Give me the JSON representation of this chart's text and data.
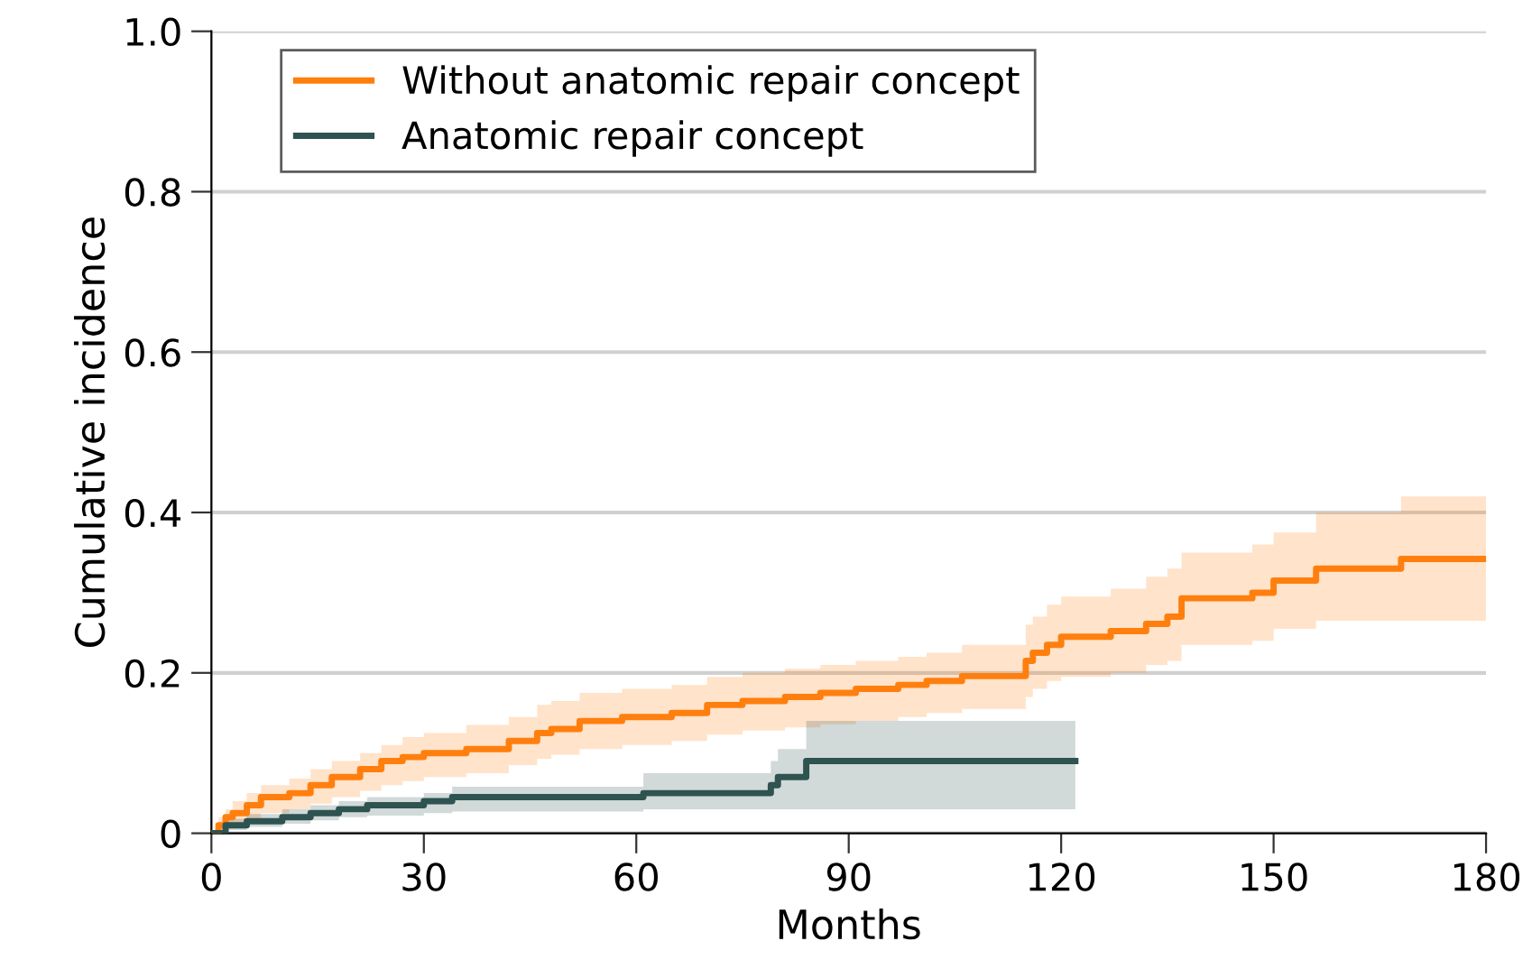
{
  "chart_data": {
    "type": "step",
    "xlabel": "Months",
    "ylabel": "Cumulative incidence",
    "xlim": [
      0,
      180
    ],
    "xticks": [
      0,
      30,
      60,
      90,
      120,
      150,
      180
    ],
    "ylim": [
      0,
      1.0
    ],
    "yticks": [
      0,
      0.2,
      0.4,
      0.6,
      0.8,
      {
        "value": 1.0,
        "label": "1.0"
      }
    ],
    "grid": "y",
    "legend": "top left",
    "series": [
      {
        "name": "Without anatomic repair concept",
        "color": "#ff7f0e",
        "x": [
          0,
          1,
          2,
          3,
          5,
          7,
          11,
          14,
          17,
          21,
          24,
          27,
          30,
          36,
          42,
          46,
          48,
          52,
          58,
          65,
          70,
          75,
          81,
          86,
          91,
          97,
          101,
          106,
          115,
          116,
          118,
          120,
          127,
          132,
          135,
          137,
          147,
          150,
          156,
          168,
          180
        ],
        "values": [
          0,
          0.01,
          0.02,
          0.025,
          0.035,
          0.045,
          0.05,
          0.06,
          0.07,
          0.08,
          0.09,
          0.095,
          0.1,
          0.105,
          0.115,
          0.125,
          0.13,
          0.14,
          0.145,
          0.15,
          0.16,
          0.165,
          0.17,
          0.175,
          0.18,
          0.185,
          0.19,
          0.196,
          0.215,
          0.225,
          0.235,
          0.245,
          0.252,
          0.261,
          0.27,
          0.293,
          0.3,
          0.315,
          0.33,
          0.342,
          0.342
        ],
        "lower": [
          0,
          0.003,
          0.008,
          0.012,
          0.018,
          0.025,
          0.03,
          0.037,
          0.045,
          0.053,
          0.06,
          0.065,
          0.07,
          0.075,
          0.085,
          0.093,
          0.098,
          0.105,
          0.11,
          0.115,
          0.123,
          0.128,
          0.132,
          0.136,
          0.14,
          0.145,
          0.15,
          0.155,
          0.17,
          0.18,
          0.19,
          0.195,
          0.2,
          0.21,
          0.215,
          0.235,
          0.24,
          0.255,
          0.265,
          0.265,
          0.265
        ],
        "upper": [
          0,
          0.02,
          0.03,
          0.04,
          0.05,
          0.06,
          0.068,
          0.08,
          0.09,
          0.1,
          0.11,
          0.12,
          0.125,
          0.135,
          0.145,
          0.16,
          0.165,
          0.175,
          0.18,
          0.185,
          0.195,
          0.2,
          0.205,
          0.21,
          0.215,
          0.22,
          0.225,
          0.235,
          0.26,
          0.27,
          0.285,
          0.295,
          0.305,
          0.32,
          0.33,
          0.35,
          0.36,
          0.375,
          0.4,
          0.42,
          0.42
        ]
      },
      {
        "name": "Anatomic repair concept",
        "color": "#2e5350",
        "x": [
          0,
          2,
          5,
          10,
          14,
          18,
          22,
          30,
          34,
          61,
          79,
          80,
          84,
          122
        ],
        "values": [
          0,
          0.01,
          0.015,
          0.02,
          0.025,
          0.03,
          0.035,
          0.04,
          0.045,
          0.05,
          0.06,
          0.07,
          0.09,
          0.09
        ],
        "lower": [
          0,
          0.004,
          0.008,
          0.012,
          0.016,
          0.02,
          0.022,
          0.025,
          0.027,
          0.03,
          0.03,
          0.03,
          0.03,
          0.03
        ],
        "upper": [
          0,
          0.018,
          0.024,
          0.03,
          0.035,
          0.04,
          0.045,
          0.05,
          0.058,
          0.075,
          0.09,
          0.105,
          0.14,
          0.14
        ]
      }
    ]
  }
}
